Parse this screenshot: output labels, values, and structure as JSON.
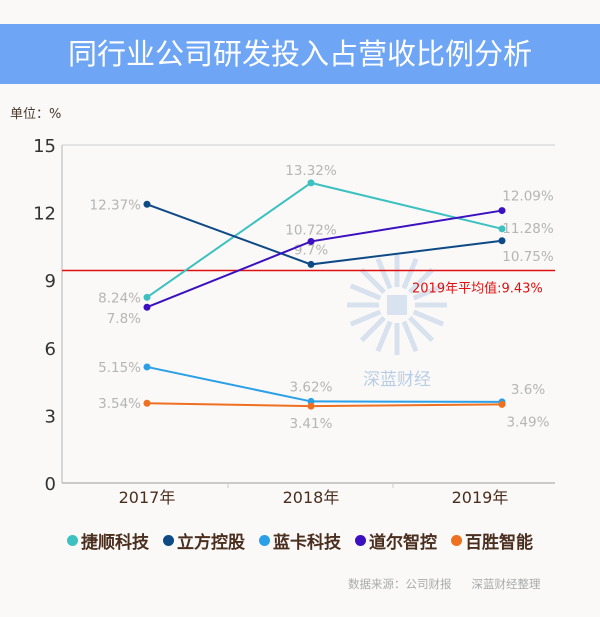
{
  "chart_data": {
    "type": "line",
    "title": "同行业公司研发投入占营收比例分析",
    "unit_label": "单位：%",
    "categories": [
      "2017年",
      "2018年",
      "2019年"
    ],
    "ylim": [
      0,
      15
    ],
    "yticks": [
      "0",
      "3",
      "6",
      "9",
      "12",
      "15"
    ],
    "grid": false,
    "legend_position": "bottom",
    "series": [
      {
        "name": "捷顺科技",
        "color": "#3cc0c0",
        "values": [
          8.24,
          13.32,
          11.28
        ],
        "labels": [
          "8.24%",
          "13.32%",
          "11.28%"
        ]
      },
      {
        "name": "立方控股",
        "color": "#0d4a86",
        "values": [
          12.37,
          9.7,
          10.75
        ],
        "labels": [
          "12.37%",
          "9.7%",
          "10.75%"
        ]
      },
      {
        "name": "蓝卡科技",
        "color": "#2aa0e8",
        "values": [
          5.15,
          3.62,
          3.6
        ],
        "labels": [
          "5.15%",
          "3.62%",
          "3.6%"
        ]
      },
      {
        "name": "道尔智控",
        "color": "#3a10c0",
        "values": [
          7.8,
          10.72,
          12.09
        ],
        "labels": [
          "7.8%",
          "10.72%",
          "12.09%"
        ]
      },
      {
        "name": "百胜智能",
        "color": "#ee7020",
        "values": [
          3.54,
          3.41,
          3.49
        ],
        "labels": [
          "3.54%",
          "3.41%",
          "3.49%"
        ]
      }
    ],
    "reference_line": {
      "value": 9.43,
      "label": "2019年平均值:9.43%",
      "color": "#e01010"
    }
  },
  "watermark": "深蓝财经",
  "source": {
    "data_source": "数据来源：公司财报",
    "compiled_by": "深蓝财经整理"
  }
}
